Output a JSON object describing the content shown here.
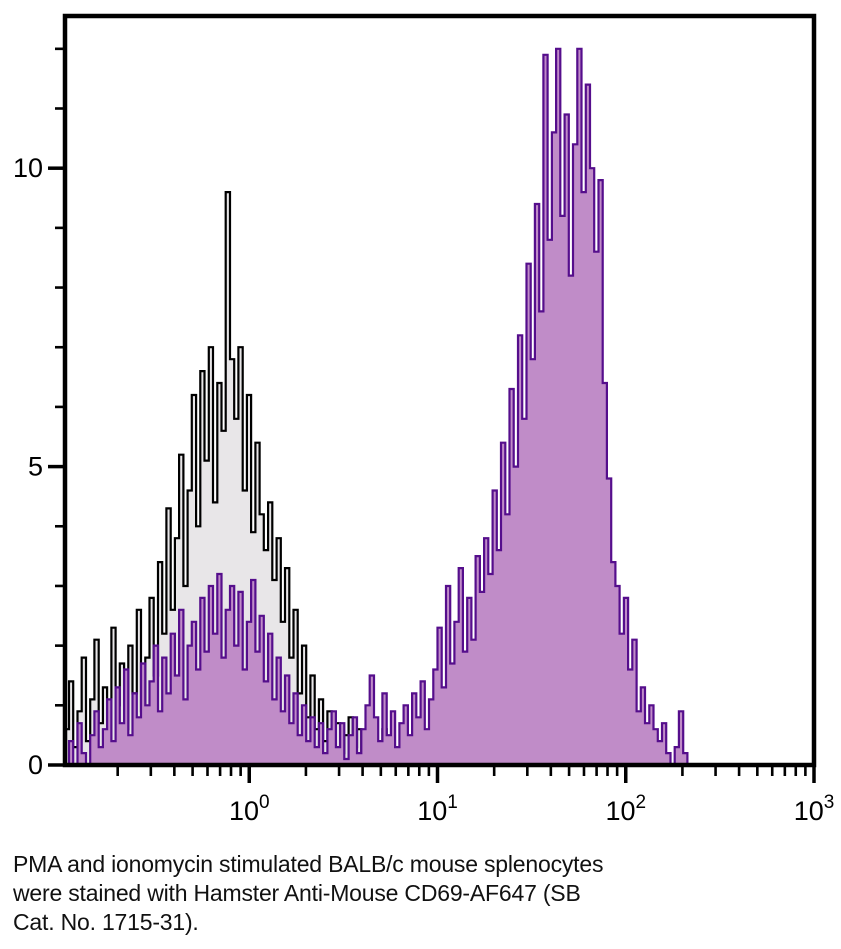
{
  "page": {
    "background": "#ffffff"
  },
  "caption": {
    "lines": [
      "PMA and ionomycin stimulated BALB/c mouse splenocytes",
      "were stained with Hamster Anti-Mouse CD69-AF647 (SB",
      "Cat. No. 1715-31)."
    ],
    "text_color": "#111111"
  },
  "chart_data": {
    "type": "area",
    "subtype": "flow-cytometry-overlay-histogram",
    "title": "",
    "xlabel": "",
    "ylabel": "",
    "x_scale": "log10",
    "x_range": [
      0.105,
      1000
    ],
    "y_range": [
      0,
      12.55
    ],
    "grid": false,
    "legend": "none",
    "frame_color": "#000000",
    "tick_color": "#000000",
    "x_major_ticks": [
      {
        "value": 1,
        "base": "10",
        "exponent": "0"
      },
      {
        "value": 10,
        "base": "10",
        "exponent": "1"
      },
      {
        "value": 100,
        "base": "10",
        "exponent": "2"
      },
      {
        "value": 1000,
        "base": "10",
        "exponent": "3"
      }
    ],
    "y_major_ticks": [
      0,
      5,
      10
    ],
    "y_major_tick_labels": [
      "0",
      "5",
      "10"
    ],
    "y_minor_tick_step": 1,
    "y_minor_tick_max": 12,
    "bins": {
      "log10_start": -0.98,
      "log10_step": 0.0225,
      "count": 150
    },
    "series": [
      {
        "name": "unstained control (black)",
        "data_name": "control-histogram",
        "stroke": "#000000",
        "fill": "#e8e6e8",
        "values": [
          0.6,
          1.4,
          0.3,
          0.9,
          1.8,
          0.4,
          1.1,
          2.1,
          0.7,
          1.3,
          0.5,
          2.3,
          1.0,
          1.7,
          0.6,
          2.0,
          1.2,
          2.6,
          0.9,
          1.8,
          2.8,
          1.5,
          3.4,
          2.2,
          4.3,
          2.6,
          3.8,
          5.2,
          3.0,
          4.6,
          6.2,
          4.0,
          6.6,
          5.1,
          7.0,
          4.4,
          6.4,
          5.6,
          9.6,
          6.8,
          5.8,
          7.0,
          4.6,
          6.2,
          3.9,
          5.4,
          4.2,
          3.6,
          4.4,
          3.1,
          3.8,
          2.4,
          3.3,
          1.8,
          2.6,
          1.2,
          2.0,
          0.8,
          1.5,
          0.6,
          1.1,
          0.4,
          0.9,
          0.3,
          0.7,
          0.2,
          0.5,
          0.8,
          0.3,
          0.6,
          0.2,
          0.5,
          0.1,
          0.4,
          0.2,
          0.6,
          0.1,
          0.3,
          0.0,
          0.2,
          0.4,
          0.0,
          0.2,
          0.0,
          0.1,
          0.0,
          0.0,
          0.1,
          0.0,
          0.0,
          0,
          0,
          0,
          0,
          0,
          0,
          0,
          0,
          0,
          0,
          0,
          0,
          0,
          0,
          0,
          0,
          0,
          0,
          0,
          0,
          0,
          0,
          0,
          0,
          0,
          0,
          0,
          0,
          0,
          0,
          0,
          0,
          0,
          0,
          0,
          0,
          0,
          0,
          0,
          0,
          0,
          0,
          0,
          0,
          0,
          0,
          0,
          0,
          0,
          0,
          0,
          0,
          0,
          0,
          0,
          0,
          0,
          0,
          0,
          0
        ]
      },
      {
        "name": "CD69-AF647 stained (purple)",
        "data_name": "cd69-af647-histogram",
        "stroke": "#550e8c",
        "fill": "#c08cc8",
        "values": [
          0.0,
          0.4,
          0.0,
          0.7,
          0.2,
          0.0,
          0.5,
          0.9,
          0.3,
          0.6,
          1.1,
          0.4,
          1.3,
          0.7,
          1.6,
          0.5,
          1.2,
          0.8,
          1.7,
          1.0,
          1.4,
          2.0,
          0.9,
          1.8,
          1.2,
          2.2,
          1.5,
          2.6,
          1.1,
          2.0,
          2.4,
          1.6,
          2.8,
          1.9,
          3.0,
          2.2,
          3.2,
          1.8,
          2.6,
          3.0,
          2.0,
          2.9,
          1.6,
          2.4,
          3.1,
          1.9,
          2.5,
          1.4,
          2.2,
          1.1,
          1.8,
          0.9,
          1.5,
          0.7,
          1.2,
          0.5,
          1.0,
          0.4,
          0.8,
          0.3,
          0.7,
          0.2,
          0.6,
          0.9,
          0.3,
          0.7,
          0.1,
          0.5,
          0.8,
          0.2,
          0.6,
          1.0,
          1.5,
          0.8,
          0.4,
          1.2,
          0.5,
          0.9,
          0.3,
          0.7,
          1.0,
          0.5,
          1.2,
          0.8,
          1.4,
          0.6,
          1.1,
          1.6,
          2.3,
          1.3,
          3.0,
          1.7,
          2.4,
          3.3,
          1.9,
          2.8,
          2.1,
          3.5,
          2.9,
          3.8,
          3.2,
          4.6,
          3.6,
          5.4,
          4.2,
          6.3,
          5.0,
          7.2,
          5.8,
          8.4,
          6.8,
          9.4,
          7.6,
          11.9,
          8.8,
          10.6,
          12.0,
          9.2,
          10.9,
          8.2,
          10.4,
          12.0,
          9.6,
          11.4,
          10.0,
          8.6,
          9.8,
          6.4,
          4.8,
          3.4,
          3.0,
          2.2,
          2.8,
          1.6,
          2.1,
          0.9,
          1.3,
          0.7,
          1.0,
          0.6,
          0.4,
          0.7,
          0.2,
          0.0,
          0.3,
          0.9,
          0.2,
          0.0,
          0.0,
          0.0
        ]
      }
    ]
  }
}
